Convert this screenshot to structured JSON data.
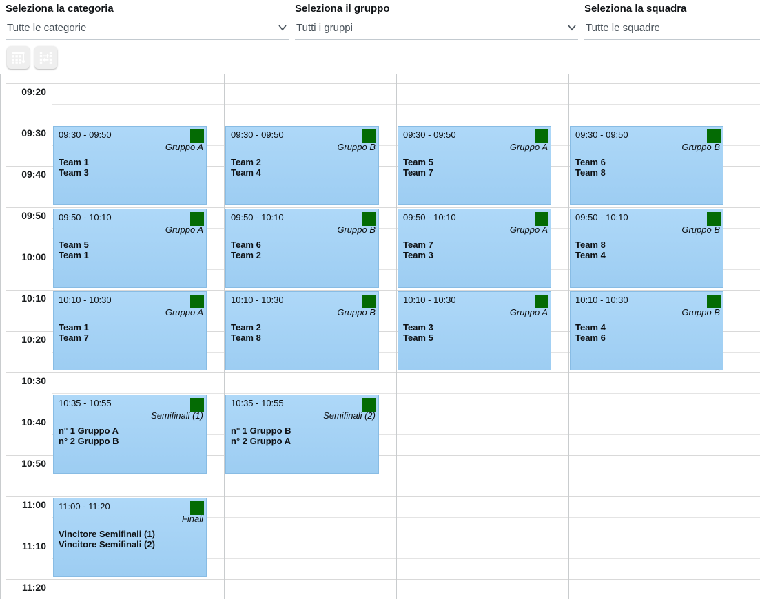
{
  "filters": {
    "category": {
      "label": "Seleziona la categoria",
      "value": "Tutte le categorie"
    },
    "group": {
      "label": "Seleziona il gruppo",
      "value": "Tutti i gruppi"
    },
    "team": {
      "label": "Seleziona la squadra",
      "value": "Tutte le squadre"
    }
  },
  "toolbar": {
    "buttons": [
      {
        "name": "calendar-table-button",
        "icon": "table-arrow-down-icon"
      },
      {
        "name": "swap-matches-button",
        "icon": "swap-columns-icon"
      }
    ]
  },
  "calendar": {
    "time_labels": [
      "09:20",
      "09:30",
      "09:40",
      "09:50",
      "10:00",
      "10:10",
      "10:20",
      "10:30",
      "10:40",
      "10:50",
      "11:00",
      "11:10",
      "11:20"
    ],
    "slot_start": "09:20",
    "slot_end": "11:20",
    "columns": 4,
    "events": [
      {
        "column": 0,
        "start": "09:30",
        "end": "09:50",
        "time_text": "09:30 - 09:50",
        "tag": "Gruppo A",
        "lines": [
          "Team 1",
          "Team 3"
        ]
      },
      {
        "column": 1,
        "start": "09:30",
        "end": "09:50",
        "time_text": "09:30 - 09:50",
        "tag": "Gruppo B",
        "lines": [
          "Team 2",
          "Team 4"
        ]
      },
      {
        "column": 2,
        "start": "09:30",
        "end": "09:50",
        "time_text": "09:30 - 09:50",
        "tag": "Gruppo A",
        "lines": [
          "Team 5",
          "Team 7"
        ]
      },
      {
        "column": 3,
        "start": "09:30",
        "end": "09:50",
        "time_text": "09:30 - 09:50",
        "tag": "Gruppo B",
        "lines": [
          "Team 6",
          "Team 8"
        ]
      },
      {
        "column": 0,
        "start": "09:50",
        "end": "10:10",
        "time_text": "09:50 - 10:10",
        "tag": "Gruppo A",
        "lines": [
          "Team 5",
          "Team 1"
        ]
      },
      {
        "column": 1,
        "start": "09:50",
        "end": "10:10",
        "time_text": "09:50 - 10:10",
        "tag": "Gruppo B",
        "lines": [
          "Team 6",
          "Team 2"
        ]
      },
      {
        "column": 2,
        "start": "09:50",
        "end": "10:10",
        "time_text": "09:50 - 10:10",
        "tag": "Gruppo A",
        "lines": [
          "Team 7",
          "Team 3"
        ]
      },
      {
        "column": 3,
        "start": "09:50",
        "end": "10:10",
        "time_text": "09:50 - 10:10",
        "tag": "Gruppo B",
        "lines": [
          "Team 8",
          "Team 4"
        ]
      },
      {
        "column": 0,
        "start": "10:10",
        "end": "10:30",
        "time_text": "10:10 - 10:30",
        "tag": "Gruppo A",
        "lines": [
          "Team 1",
          "Team 7"
        ]
      },
      {
        "column": 1,
        "start": "10:10",
        "end": "10:30",
        "time_text": "10:10 - 10:30",
        "tag": "Gruppo B",
        "lines": [
          "Team 2",
          "Team 8"
        ]
      },
      {
        "column": 2,
        "start": "10:10",
        "end": "10:30",
        "time_text": "10:10 - 10:30",
        "tag": "Gruppo A",
        "lines": [
          "Team 3",
          "Team 5"
        ]
      },
      {
        "column": 3,
        "start": "10:10",
        "end": "10:30",
        "time_text": "10:10 - 10:30",
        "tag": "Gruppo B",
        "lines": [
          "Team 4",
          "Team 6"
        ]
      },
      {
        "column": 0,
        "start": "10:35",
        "end": "10:55",
        "time_text": "10:35 - 10:55",
        "tag": "Semifinali (1)",
        "lines": [
          "n° 1 Gruppo A",
          "n° 2 Gruppo B"
        ]
      },
      {
        "column": 1,
        "start": "10:35",
        "end": "10:55",
        "time_text": "10:35 - 10:55",
        "tag": "Semifinali (2)",
        "lines": [
          "n° 1 Gruppo B",
          "n° 2 Gruppo A"
        ]
      },
      {
        "column": 0,
        "start": "11:00",
        "end": "11:20",
        "time_text": "11:00 - 11:20",
        "tag": "Finali",
        "lines": [
          "Vincitore Semifinali (1)",
          "Vincitore Semifinali (2)"
        ]
      }
    ]
  },
  "colors": {
    "button_blue": "#0c70f2",
    "event_bg_top": "#aed8f8",
    "event_bg_bottom": "#9dcdf2",
    "event_border": "#88bce4",
    "status_green": "#046b04"
  }
}
